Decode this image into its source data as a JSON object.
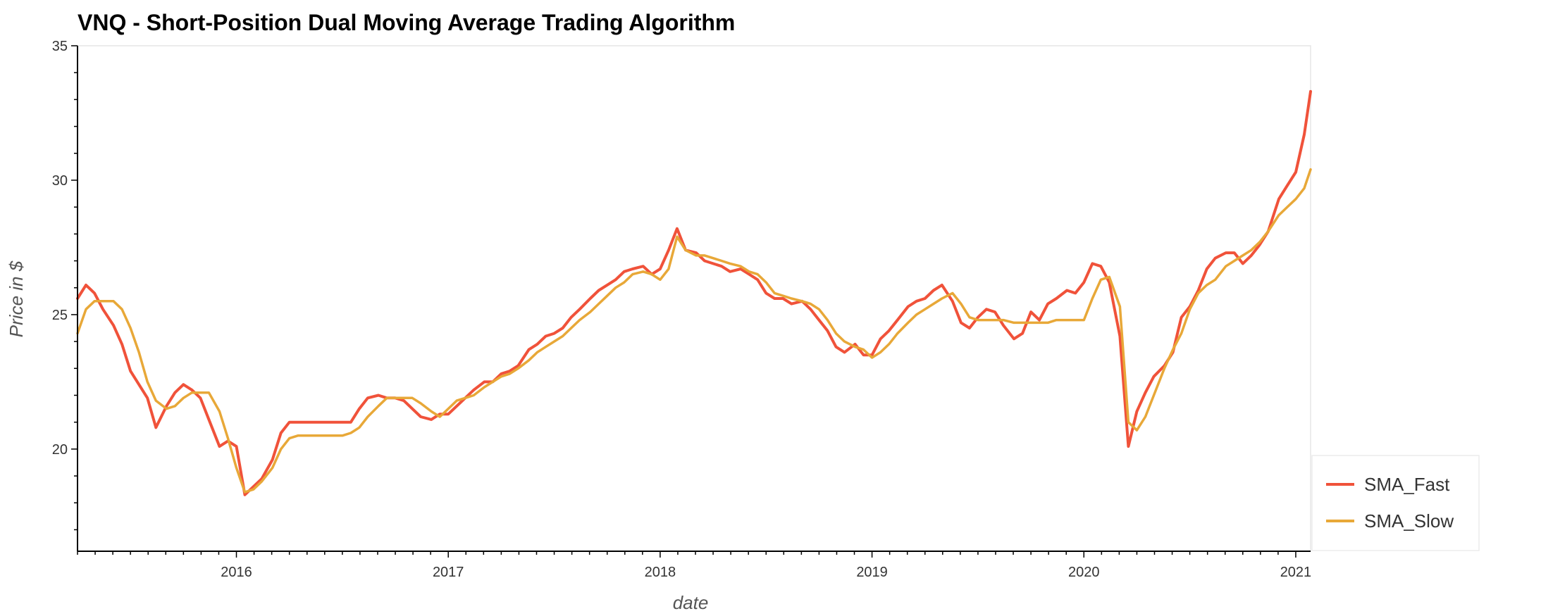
{
  "chart_data": {
    "type": "line",
    "title": "VNQ - Short-Position Dual Moving Average Trading Algorithm",
    "xlabel": "date",
    "ylabel": "Price in $",
    "xlim": [
      2015.25,
      2021.07
    ],
    "ylim": [
      16.2,
      35
    ],
    "y_ticks": [
      20,
      25,
      30,
      35
    ],
    "x_ticks": [
      2016,
      2017,
      2018,
      2019,
      2020,
      2021
    ],
    "x_tick_labels": [
      "2016",
      "2017",
      "2018",
      "2019",
      "2020",
      "2021"
    ],
    "legend_position": "right",
    "grid": false,
    "series": [
      {
        "name": "SMA_Fast",
        "color": "#f0523a",
        "x": [
          2015.25,
          2015.29,
          2015.33,
          2015.37,
          2015.42,
          2015.46,
          2015.5,
          2015.54,
          2015.58,
          2015.62,
          2015.67,
          2015.71,
          2015.75,
          2015.79,
          2015.83,
          2015.87,
          2015.92,
          2015.96,
          2016.0,
          2016.04,
          2016.08,
          2016.12,
          2016.17,
          2016.21,
          2016.25,
          2016.29,
          2016.33,
          2016.38,
          2016.42,
          2016.46,
          2016.5,
          2016.54,
          2016.58,
          2016.62,
          2016.67,
          2016.71,
          2016.75,
          2016.79,
          2016.83,
          2016.87,
          2016.92,
          2016.96,
          2017.0,
          2017.04,
          2017.08,
          2017.12,
          2017.17,
          2017.21,
          2017.25,
          2017.29,
          2017.33,
          2017.38,
          2017.42,
          2017.46,
          2017.5,
          2017.54,
          2017.58,
          2017.62,
          2017.67,
          2017.71,
          2017.75,
          2017.79,
          2017.83,
          2017.87,
          2017.92,
          2017.96,
          2018.0,
          2018.04,
          2018.08,
          2018.12,
          2018.17,
          2018.21,
          2018.25,
          2018.29,
          2018.33,
          2018.38,
          2018.42,
          2018.46,
          2018.5,
          2018.54,
          2018.58,
          2018.62,
          2018.67,
          2018.71,
          2018.75,
          2018.79,
          2018.83,
          2018.87,
          2018.92,
          2018.96,
          2019.0,
          2019.04,
          2019.08,
          2019.12,
          2019.17,
          2019.21,
          2019.25,
          2019.29,
          2019.33,
          2019.38,
          2019.42,
          2019.46,
          2019.5,
          2019.54,
          2019.58,
          2019.62,
          2019.67,
          2019.71,
          2019.75,
          2019.79,
          2019.83,
          2019.87,
          2019.92,
          2019.96,
          2020.0,
          2020.04,
          2020.08,
          2020.12,
          2020.17,
          2020.21,
          2020.25,
          2020.29,
          2020.33,
          2020.38,
          2020.42,
          2020.46,
          2020.5,
          2020.54,
          2020.58,
          2020.62,
          2020.67,
          2020.71,
          2020.75,
          2020.79,
          2020.83,
          2020.87,
          2020.92,
          2020.96,
          2021.0,
          2021.04,
          2021.07
        ],
        "values": [
          25.6,
          26.1,
          25.8,
          25.2,
          24.6,
          23.9,
          22.9,
          22.4,
          21.9,
          20.8,
          21.6,
          22.1,
          22.4,
          22.2,
          21.9,
          21.1,
          20.1,
          20.3,
          20.1,
          18.3,
          18.6,
          18.9,
          19.6,
          20.6,
          21.0,
          21.0,
          21.0,
          21.0,
          21.0,
          21.0,
          21.0,
          21.0,
          21.5,
          21.9,
          22.0,
          21.9,
          21.9,
          21.8,
          21.5,
          21.2,
          21.1,
          21.3,
          21.3,
          21.6,
          21.9,
          22.2,
          22.5,
          22.5,
          22.8,
          22.9,
          23.1,
          23.7,
          23.9,
          24.2,
          24.3,
          24.5,
          24.9,
          25.2,
          25.6,
          25.9,
          26.1,
          26.3,
          26.6,
          26.7,
          26.8,
          26.5,
          26.7,
          27.4,
          28.2,
          27.4,
          27.3,
          27.0,
          26.9,
          26.8,
          26.6,
          26.7,
          26.5,
          26.3,
          25.8,
          25.6,
          25.6,
          25.4,
          25.5,
          25.2,
          24.8,
          24.4,
          23.8,
          23.6,
          23.9,
          23.5,
          23.5,
          24.1,
          24.4,
          24.8,
          25.3,
          25.5,
          25.6,
          25.9,
          26.1,
          25.5,
          24.7,
          24.5,
          24.9,
          25.2,
          25.1,
          24.6,
          24.1,
          24.3,
          25.1,
          24.8,
          25.4,
          25.6,
          25.9,
          25.8,
          26.2,
          26.9,
          26.8,
          26.2,
          24.2,
          20.1,
          21.4,
          22.1,
          22.7,
          23.1,
          23.6,
          24.9,
          25.3,
          25.9,
          26.7,
          27.1,
          27.3,
          27.3,
          26.9,
          27.2,
          27.6,
          28.1,
          29.3,
          29.8,
          30.3,
          31.7,
          33.3
        ]
      },
      {
        "name": "SMA_Slow",
        "color": "#e8a838",
        "x": [
          2015.25,
          2015.29,
          2015.33,
          2015.37,
          2015.42,
          2015.46,
          2015.5,
          2015.54,
          2015.58,
          2015.62,
          2015.67,
          2015.71,
          2015.75,
          2015.79,
          2015.83,
          2015.87,
          2015.92,
          2015.96,
          2016.0,
          2016.04,
          2016.08,
          2016.12,
          2016.17,
          2016.21,
          2016.25,
          2016.29,
          2016.33,
          2016.38,
          2016.42,
          2016.46,
          2016.5,
          2016.54,
          2016.58,
          2016.62,
          2016.67,
          2016.71,
          2016.75,
          2016.79,
          2016.83,
          2016.87,
          2016.92,
          2016.96,
          2017.0,
          2017.04,
          2017.08,
          2017.12,
          2017.17,
          2017.21,
          2017.25,
          2017.29,
          2017.33,
          2017.38,
          2017.42,
          2017.46,
          2017.5,
          2017.54,
          2017.58,
          2017.62,
          2017.67,
          2017.71,
          2017.75,
          2017.79,
          2017.83,
          2017.87,
          2017.92,
          2017.96,
          2018.0,
          2018.04,
          2018.08,
          2018.12,
          2018.17,
          2018.21,
          2018.25,
          2018.29,
          2018.33,
          2018.38,
          2018.42,
          2018.46,
          2018.5,
          2018.54,
          2018.58,
          2018.62,
          2018.67,
          2018.71,
          2018.75,
          2018.79,
          2018.83,
          2018.87,
          2018.92,
          2018.96,
          2019.0,
          2019.04,
          2019.08,
          2019.12,
          2019.17,
          2019.21,
          2019.25,
          2019.29,
          2019.33,
          2019.38,
          2019.42,
          2019.46,
          2019.5,
          2019.54,
          2019.58,
          2019.62,
          2019.67,
          2019.71,
          2019.75,
          2019.79,
          2019.83,
          2019.87,
          2019.92,
          2019.96,
          2020.0,
          2020.04,
          2020.08,
          2020.12,
          2020.17,
          2020.21,
          2020.25,
          2020.29,
          2020.33,
          2020.38,
          2020.42,
          2020.46,
          2020.5,
          2020.54,
          2020.58,
          2020.62,
          2020.67,
          2020.71,
          2020.75,
          2020.79,
          2020.83,
          2020.87,
          2020.92,
          2020.96,
          2021.0,
          2021.04,
          2021.07
        ],
        "values": [
          24.3,
          25.2,
          25.5,
          25.5,
          25.5,
          25.2,
          24.5,
          23.6,
          22.5,
          21.8,
          21.5,
          21.6,
          21.9,
          22.1,
          22.1,
          22.1,
          21.4,
          20.4,
          19.3,
          18.4,
          18.5,
          18.8,
          19.3,
          20.0,
          20.4,
          20.5,
          20.5,
          20.5,
          20.5,
          20.5,
          20.5,
          20.6,
          20.8,
          21.2,
          21.6,
          21.9,
          21.9,
          21.9,
          21.9,
          21.7,
          21.4,
          21.2,
          21.5,
          21.8,
          21.9,
          22.0,
          22.3,
          22.5,
          22.7,
          22.8,
          23.0,
          23.3,
          23.6,
          23.8,
          24.0,
          24.2,
          24.5,
          24.8,
          25.1,
          25.4,
          25.7,
          26.0,
          26.2,
          26.5,
          26.6,
          26.5,
          26.3,
          26.7,
          27.9,
          27.4,
          27.2,
          27.2,
          27.1,
          27.0,
          26.9,
          26.8,
          26.6,
          26.5,
          26.2,
          25.8,
          25.7,
          25.6,
          25.5,
          25.4,
          25.2,
          24.8,
          24.3,
          24.0,
          23.8,
          23.7,
          23.4,
          23.6,
          23.9,
          24.3,
          24.7,
          25.0,
          25.2,
          25.4,
          25.6,
          25.8,
          25.4,
          24.9,
          24.8,
          24.8,
          24.8,
          24.8,
          24.7,
          24.7,
          24.7,
          24.7,
          24.7,
          24.8,
          24.8,
          24.8,
          24.8,
          25.6,
          26.3,
          26.4,
          25.3,
          21.0,
          20.7,
          21.2,
          22.0,
          23.0,
          23.7,
          24.3,
          25.2,
          25.8,
          26.1,
          26.3,
          26.8,
          27.0,
          27.2,
          27.4,
          27.7,
          28.1,
          28.7,
          29.0,
          29.3,
          29.7,
          30.4
        ]
      }
    ]
  },
  "legend": {
    "items": [
      "SMA_Fast",
      "SMA_Slow"
    ]
  }
}
